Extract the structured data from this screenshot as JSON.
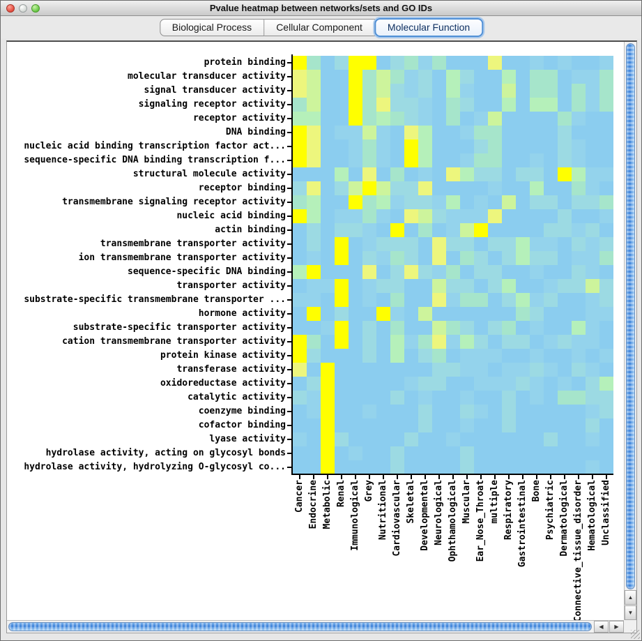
{
  "window": {
    "title": "Pvalue heatmap between networks/sets and GO IDs"
  },
  "tabs": [
    {
      "label": "Biological Process",
      "selected": false
    },
    {
      "label": "Cellular Component",
      "selected": false
    },
    {
      "label": "Molecular Function",
      "selected": true
    }
  ],
  "chart_data": {
    "type": "heatmap",
    "title": "Pvalue heatmap between networks/sets and GO IDs",
    "rows": [
      "protein binding",
      "molecular transducer activity",
      "signal transducer activity",
      "signaling receptor activity",
      "receptor activity",
      "DNA binding",
      "nucleic acid binding transcription factor act...",
      "sequence-specific DNA binding transcription f...",
      "structural molecule activity",
      "receptor binding",
      "transmembrane signaling receptor activity",
      "nucleic acid binding",
      "actin binding",
      "transmembrane transporter activity",
      "ion transmembrane transporter activity",
      "sequence-specific DNA binding",
      "transporter activity",
      "substrate-specific transmembrane transporter ...",
      "hormone activity",
      "substrate-specific transporter activity",
      "cation transmembrane transporter activity",
      "protein kinase activity",
      "transferase activity",
      "oxidoreductase activity",
      "catalytic activity",
      "coenzyme binding",
      "cofactor binding",
      "lyase activity",
      "hydrolase activity, acting on glycosyl bonds",
      "hydrolase activity, hydrolyzing O-glycosyl co..."
    ],
    "columns": [
      "Cancer",
      "Endocrine",
      "Metabolic",
      "Renal",
      "Immunological",
      "Grey",
      "Nutritional",
      "Cardiovascular",
      "Skeletal",
      "Developmental",
      "Neurological",
      "Ophthamological",
      "Muscular",
      "Ear_Nose_Throat",
      "multiple",
      "Respiratory",
      "Gastrointestinal",
      "Bone",
      "Psychiatric",
      "Dermatological",
      "Connective_tissue_disorder",
      "Hematological",
      "Unclassified"
    ],
    "palette": {
      "Y": "#ffff00",
      "y": "#edf67d",
      "G": "#cdf49c",
      "g": "#b5f0ba",
      "c": "#a6e5cb",
      "t": "#9cdae3",
      "T": "#94d3ec",
      "b": "#8bcdef"
    },
    "cells": [
      "YcbtYYbtcTcbbbybbTbTbbT",
      "yGbbYcGcTtbgtbbgbccbTTc",
      "yGbbYcGtTtbgTbbGbccbcTc",
      "cGbbYcyttTbctbbgbggbcTc",
      "ggbbYcgctTbcbTGbbbbcTbb",
      "YybTTGTbygbbTccbbbbtbbb",
      "YybbTcTbYgbbbtcbbbbtTbb",
      "YybbTcTbYgbbTccbbTbtTbb",
      "bbbgbybcbTbygttbttbYgTT",
      "tybtGYGttybbbbTbbgbbcTb",
      "cgbbYcgTttTgbTbGbttbttc",
      "YgbTTcTbyGtTTTybbbbtbbT",
      "btbttTbYbcbTGYbbbbttTtb",
      "btbYbTtttbyttbttgTTbtTt",
      "bTbYbtTctbybctbtgttbTTc",
      "gYbbbybtytTcbttbbTbbtTb",
      "bTTYbTttbbGttbtgbbTttGt",
      "TTbYbTbcbbyTccbtgTtbbTt",
      "bYbtbbYTbGbbbbbbctbbbTT",
      "bbTYbtbcbbGctbtcbTbbgTb",
      "YcbYbtbgTcyTgtbttbTtTTb",
      "YtbbbtbgbtcbTTTbbTbbTbT",
      "ybYbbbbbbbttTTbTTtTbtTb",
      "btYbbbbbTttbbTTTtTbTbtg",
      "tTYbbbbtbTbbTbbtbTbcctt",
      "bTYbbTbbbtbbtTbtbbbbbTt",
      "bbYbbbbbbtbbTbbtbbbbbtb",
      "TbYtbbbbtbbTbbbbbbtbbTb",
      "bbYbTbbtbbbbtbbbbbbbbbb",
      "bbYbbbbtbbbbtbbbbbbbbTb"
    ]
  },
  "scrollbars": {
    "up_arrow": "▲",
    "down_arrow": "▼",
    "left_arrow": "◀",
    "right_arrow": "▶"
  }
}
